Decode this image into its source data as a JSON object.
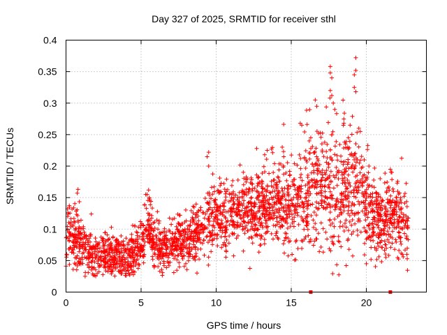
{
  "chart_data": {
    "type": "scatter",
    "title": "Day 327 of 2025, SRMTID for receiver sthl",
    "xlabel": "GPS time / hours",
    "ylabel": "SRMTID / TECUs",
    "xlim": [
      0,
      24
    ],
    "ylim": [
      0,
      0.4
    ],
    "x_ticks": [
      0,
      5,
      10,
      15,
      20
    ],
    "x_tick_labels": [
      "0",
      "5",
      "10",
      "15",
      "20"
    ],
    "y_ticks": [
      0,
      0.05,
      0.1,
      0.15,
      0.2,
      0.25,
      0.3,
      0.35,
      0.4
    ],
    "y_tick_labels": [
      "0",
      "0.05",
      "0.1",
      "0.15",
      "0.2",
      "0.25",
      "0.3",
      "0.35",
      "0.4"
    ],
    "grid": true,
    "legend": "none",
    "marker": "plus",
    "color": "#ff0000",
    "trend": [
      [
        0.0,
        0.085
      ],
      [
        0.5,
        0.09
      ],
      [
        1.0,
        0.075
      ],
      [
        1.5,
        0.065
      ],
      [
        2.0,
        0.06
      ],
      [
        2.5,
        0.058
      ],
      [
        3.0,
        0.057
      ],
      [
        3.5,
        0.055
      ],
      [
        4.0,
        0.055
      ],
      [
        4.5,
        0.058
      ],
      [
        5.0,
        0.072
      ],
      [
        5.5,
        0.11
      ],
      [
        6.0,
        0.072
      ],
      [
        6.5,
        0.075
      ],
      [
        7.0,
        0.078
      ],
      [
        7.5,
        0.08
      ],
      [
        8.0,
        0.08
      ],
      [
        8.5,
        0.09
      ],
      [
        9.0,
        0.1
      ],
      [
        9.5,
        0.12
      ],
      [
        10.0,
        0.115
      ],
      [
        10.5,
        0.12
      ],
      [
        11.0,
        0.125
      ],
      [
        11.5,
        0.13
      ],
      [
        12.0,
        0.135
      ],
      [
        12.5,
        0.13
      ],
      [
        13.0,
        0.135
      ],
      [
        13.5,
        0.14
      ],
      [
        14.0,
        0.145
      ],
      [
        14.5,
        0.14
      ],
      [
        15.0,
        0.14
      ],
      [
        15.5,
        0.15
      ],
      [
        16.0,
        0.155
      ],
      [
        16.5,
        0.165
      ],
      [
        17.0,
        0.17
      ],
      [
        17.5,
        0.175
      ],
      [
        18.0,
        0.17
      ],
      [
        18.5,
        0.165
      ],
      [
        19.0,
        0.17
      ],
      [
        19.5,
        0.165
      ],
      [
        20.0,
        0.14
      ],
      [
        20.5,
        0.115
      ],
      [
        21.0,
        0.11
      ],
      [
        21.5,
        0.12
      ],
      [
        22.0,
        0.125
      ],
      [
        22.5,
        0.11
      ],
      [
        22.8,
        0.1
      ]
    ],
    "spread": [
      [
        0.0,
        0.025
      ],
      [
        1.0,
        0.022
      ],
      [
        2.0,
        0.018
      ],
      [
        3.0,
        0.016
      ],
      [
        4.0,
        0.016
      ],
      [
        5.0,
        0.02
      ],
      [
        5.5,
        0.025
      ],
      [
        6.0,
        0.018
      ],
      [
        7.0,
        0.018
      ],
      [
        8.0,
        0.02
      ],
      [
        9.0,
        0.025
      ],
      [
        9.5,
        0.03
      ],
      [
        10.0,
        0.025
      ],
      [
        11.0,
        0.027
      ],
      [
        12.0,
        0.028
      ],
      [
        13.0,
        0.03
      ],
      [
        14.0,
        0.032
      ],
      [
        15.0,
        0.035
      ],
      [
        16.0,
        0.04
      ],
      [
        17.0,
        0.045
      ],
      [
        18.0,
        0.05
      ],
      [
        19.0,
        0.05
      ],
      [
        19.5,
        0.04
      ],
      [
        20.0,
        0.035
      ],
      [
        21.0,
        0.03
      ],
      [
        22.0,
        0.028
      ],
      [
        22.8,
        0.025
      ]
    ],
    "x_range": [
      0.0,
      22.8
    ],
    "n_points": 2600,
    "highlights": [
      {
        "x": 17.6,
        "y": 0.358
      },
      {
        "x": 17.6,
        "y": 0.348
      },
      {
        "x": 17.7,
        "y": 0.34
      },
      {
        "x": 17.6,
        "y": 0.32
      },
      {
        "x": 17.7,
        "y": 0.312
      },
      {
        "x": 19.3,
        "y": 0.372
      },
      {
        "x": 19.3,
        "y": 0.352
      },
      {
        "x": 19.2,
        "y": 0.345
      },
      {
        "x": 19.2,
        "y": 0.325
      },
      {
        "x": 19.3,
        "y": 0.318
      },
      {
        "x": 16.6,
        "y": 0.305
      },
      {
        "x": 16.7,
        "y": 0.295
      },
      {
        "x": 17.8,
        "y": 0.3
      },
      {
        "x": 17.9,
        "y": 0.29
      },
      {
        "x": 18.5,
        "y": 0.275
      },
      {
        "x": 18.5,
        "y": 0.268
      },
      {
        "x": 19.5,
        "y": 0.26
      },
      {
        "x": 19.6,
        "y": 0.255
      },
      {
        "x": 15.6,
        "y": 0.268
      },
      {
        "x": 15.7,
        "y": 0.265
      },
      {
        "x": 9.5,
        "y": 0.222
      },
      {
        "x": 9.4,
        "y": 0.215
      },
      {
        "x": 9.5,
        "y": 0.2
      },
      {
        "x": 12.7,
        "y": 0.228
      },
      {
        "x": 13.4,
        "y": 0.225
      },
      {
        "x": 14.4,
        "y": 0.23
      },
      {
        "x": 14.5,
        "y": 0.215
      },
      {
        "x": 16.2,
        "y": 0.24
      },
      {
        "x": 16.3,
        "y": 0.245
      },
      {
        "x": 18.8,
        "y": 0.245
      },
      {
        "x": 21.6,
        "y": 0.195
      },
      {
        "x": 21.7,
        "y": 0.19
      },
      {
        "x": 5.5,
        "y": 0.162
      },
      {
        "x": 5.4,
        "y": 0.155
      },
      {
        "x": 0.8,
        "y": 0.163
      },
      {
        "x": 0.75,
        "y": 0.157
      },
      {
        "x": 20.0,
        "y": 0.045
      },
      {
        "x": 21.3,
        "y": 0.055
      },
      {
        "x": 22.7,
        "y": 0.06
      },
      {
        "x": 22.4,
        "y": 0.06
      }
    ],
    "zero_markers": [
      16.3,
      21.6
    ]
  }
}
